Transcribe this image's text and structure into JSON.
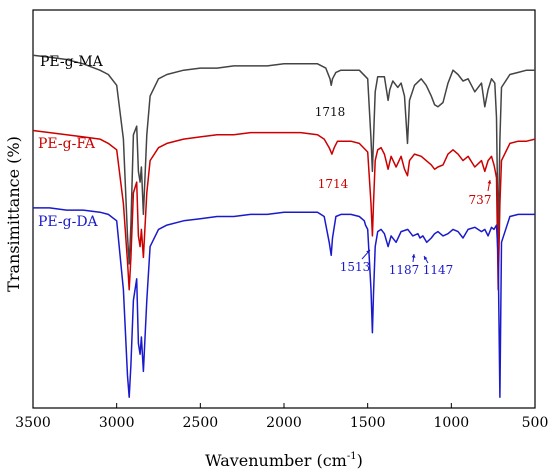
{
  "chart_data": {
    "type": "line",
    "title": "",
    "xlabel": "Wavenumber (cm",
    "xlabel_sup": "-1",
    "xlabel_close": ")",
    "ylabel": "Transimittance (%)",
    "xlim": [
      3500,
      500
    ],
    "x_reversed": true,
    "y_ticks_shown": false,
    "grid": false,
    "x_ticks": [
      "3500",
      "3000",
      "2500",
      "2000",
      "1500",
      "1000",
      "500"
    ],
    "x_tick_values": [
      3500,
      3000,
      2500,
      2000,
      1500,
      1000,
      500
    ],
    "series": [
      {
        "name": "PE-g-MA",
        "color": "#444444",
        "x": [
          3500,
          3400,
          3300,
          3200,
          3100,
          3050,
          3000,
          2960,
          2935,
          2925,
          2915,
          2900,
          2880,
          2870,
          2860,
          2852,
          2840,
          2820,
          2800,
          2750,
          2700,
          2600,
          2500,
          2400,
          2300,
          2200,
          2100,
          2000,
          1900,
          1800,
          1750,
          1725,
          1718,
          1710,
          1690,
          1660,
          1600,
          1550,
          1500,
          1480,
          1472,
          1465,
          1455,
          1440,
          1400,
          1378,
          1368,
          1350,
          1320,
          1300,
          1280,
          1262,
          1250,
          1220,
          1180,
          1150,
          1120,
          1100,
          1080,
          1050,
          1020,
          990,
          960,
          930,
          900,
          860,
          820,
          800,
          780,
          760,
          740,
          730,
          720,
          710,
          700,
          650,
          600,
          550,
          500
        ],
        "y": [
          99,
          98,
          97,
          95,
          92,
          90,
          85,
          60,
          15,
          2,
          20,
          62,
          66,
          45,
          40,
          47,
          25,
          62,
          80,
          88,
          90,
          92,
          93,
          93,
          94,
          94,
          94,
          95,
          95,
          95,
          93,
          88,
          85,
          88,
          91,
          92,
          92,
          92,
          88,
          60,
          45,
          60,
          82,
          89,
          89,
          78,
          83,
          87,
          84,
          86,
          80,
          58,
          78,
          85,
          88,
          85,
          80,
          76,
          75,
          77,
          86,
          92,
          90,
          87,
          88,
          82,
          86,
          75,
          83,
          88,
          86,
          70,
          12,
          60,
          84,
          90,
          91,
          92,
          92
        ]
      },
      {
        "name": "PE-g-FA",
        "color": "#cc0000",
        "x": [
          3500,
          3400,
          3300,
          3200,
          3100,
          3050,
          3000,
          2960,
          2935,
          2925,
          2915,
          2900,
          2880,
          2870,
          2860,
          2852,
          2840,
          2820,
          2800,
          2750,
          2700,
          2600,
          2500,
          2400,
          2300,
          2200,
          2100,
          2000,
          1900,
          1800,
          1760,
          1730,
          1714,
          1700,
          1680,
          1650,
          1600,
          1550,
          1500,
          1480,
          1472,
          1465,
          1455,
          1440,
          1420,
          1400,
          1378,
          1360,
          1330,
          1300,
          1280,
          1262,
          1250,
          1220,
          1180,
          1150,
          1120,
          1100,
          1080,
          1050,
          1020,
          990,
          960,
          930,
          900,
          860,
          820,
          800,
          780,
          760,
          745,
          737,
          730,
          720,
          710,
          700,
          650,
          600,
          550,
          500
        ],
        "y": [
          64,
          63,
          62,
          61,
          60,
          58,
          55,
          30,
          3,
          -10,
          5,
          35,
          40,
          15,
          10,
          18,
          5,
          35,
          50,
          56,
          58,
          60,
          61,
          62,
          62,
          63,
          63,
          63,
          63,
          62,
          60,
          56,
          53,
          56,
          59,
          59,
          59,
          58,
          54,
          30,
          15,
          30,
          50,
          55,
          56,
          53,
          46,
          52,
          47,
          52,
          46,
          43,
          50,
          53,
          52,
          50,
          48,
          46,
          47,
          48,
          53,
          55,
          53,
          50,
          52,
          47,
          50,
          45,
          50,
          52,
          48,
          45,
          42,
          -10,
          30,
          50,
          58,
          59,
          59,
          60
        ]
      },
      {
        "name": "PE-g-DA",
        "color": "#1a1acc",
        "x": [
          3500,
          3400,
          3300,
          3200,
          3100,
          3050,
          3000,
          2960,
          2935,
          2925,
          2915,
          2900,
          2880,
          2870,
          2860,
          2852,
          2840,
          2820,
          2800,
          2750,
          2700,
          2600,
          2500,
          2400,
          2300,
          2200,
          2100,
          2000,
          1900,
          1800,
          1760,
          1730,
          1718,
          1710,
          1690,
          1660,
          1600,
          1550,
          1520,
          1513,
          1500,
          1480,
          1472,
          1465,
          1455,
          1440,
          1420,
          1400,
          1378,
          1360,
          1330,
          1300,
          1260,
          1230,
          1200,
          1187,
          1170,
          1147,
          1120,
          1100,
          1080,
          1050,
          1020,
          990,
          960,
          930,
          900,
          860,
          820,
          800,
          780,
          760,
          745,
          730,
          720,
          710,
          700,
          650,
          600,
          550,
          500
        ],
        "y": [
          28,
          28,
          27,
          27,
          26,
          25,
          22,
          -10,
          -50,
          -60,
          -45,
          -15,
          -5,
          -35,
          -40,
          -32,
          -48,
          -15,
          10,
          18,
          20,
          22,
          23,
          24,
          24,
          25,
          25,
          26,
          26,
          26,
          24,
          12,
          6,
          14,
          24,
          25,
          25,
          24,
          22,
          20,
          18,
          -10,
          -30,
          -12,
          10,
          17,
          18,
          16,
          10,
          15,
          12,
          17,
          18,
          15,
          16,
          14,
          15,
          12,
          14,
          16,
          17,
          15,
          16,
          18,
          17,
          14,
          18,
          19,
          17,
          18,
          15,
          19,
          18,
          20,
          5,
          -60,
          12,
          24,
          25,
          25,
          25
        ]
      }
    ],
    "series_labels": [
      "PE-g-MA",
      "PE-g-FA",
      "PE-g-DA"
    ],
    "annotations": [
      {
        "text": "1718",
        "color": "#111111",
        "x": 1718,
        "series": 0
      },
      {
        "text": "1714",
        "color": "#cc0000",
        "x": 1714,
        "series": 1
      },
      {
        "text": "737",
        "color": "#cc0000",
        "x": 737,
        "series": 1
      },
      {
        "text": "1513",
        "color": "#1a1acc",
        "x": 1513,
        "series": 2
      },
      {
        "text": "1187",
        "color": "#1a1acc",
        "x": 1187,
        "series": 2
      },
      {
        "text": "1147",
        "color": "#1a1acc",
        "x": 1147,
        "series": 2
      }
    ]
  }
}
